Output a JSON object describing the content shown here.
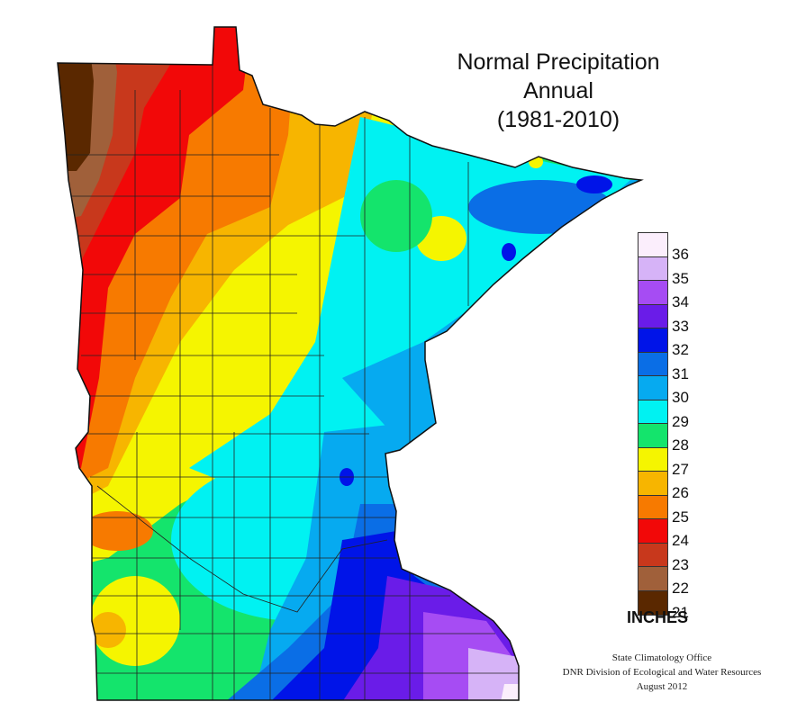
{
  "title": {
    "line1": "Normal Precipitation",
    "line2": "Annual",
    "line3": "(1981-2010)"
  },
  "legend": {
    "units": "INCHES",
    "entries": [
      {
        "label": "36",
        "color": "#fbeefc"
      },
      {
        "label": "35",
        "color": "#d6b3f7"
      },
      {
        "label": "34",
        "color": "#a64cf3"
      },
      {
        "label": "33",
        "color": "#6a1ce8"
      },
      {
        "label": "32",
        "color": "#0014e8"
      },
      {
        "label": "31",
        "color": "#0a6ee6"
      },
      {
        "label": "30",
        "color": "#06aaf0"
      },
      {
        "label": "29",
        "color": "#00f2f2"
      },
      {
        "label": "28",
        "color": "#14e46c"
      },
      {
        "label": "27",
        "color": "#f5f500"
      },
      {
        "label": "26",
        "color": "#f7b500"
      },
      {
        "label": "25",
        "color": "#f77a00"
      },
      {
        "label": "24",
        "color": "#f20808"
      },
      {
        "label": "23",
        "color": "#c8381c"
      },
      {
        "label": "22",
        "color": "#a0603a"
      },
      {
        "label": "21",
        "color": "#5a2800"
      }
    ]
  },
  "credits": {
    "line1": "State Climatology Office",
    "line2": "DNR Division of Ecological and Water Resources",
    "line3": "August 2012"
  }
}
